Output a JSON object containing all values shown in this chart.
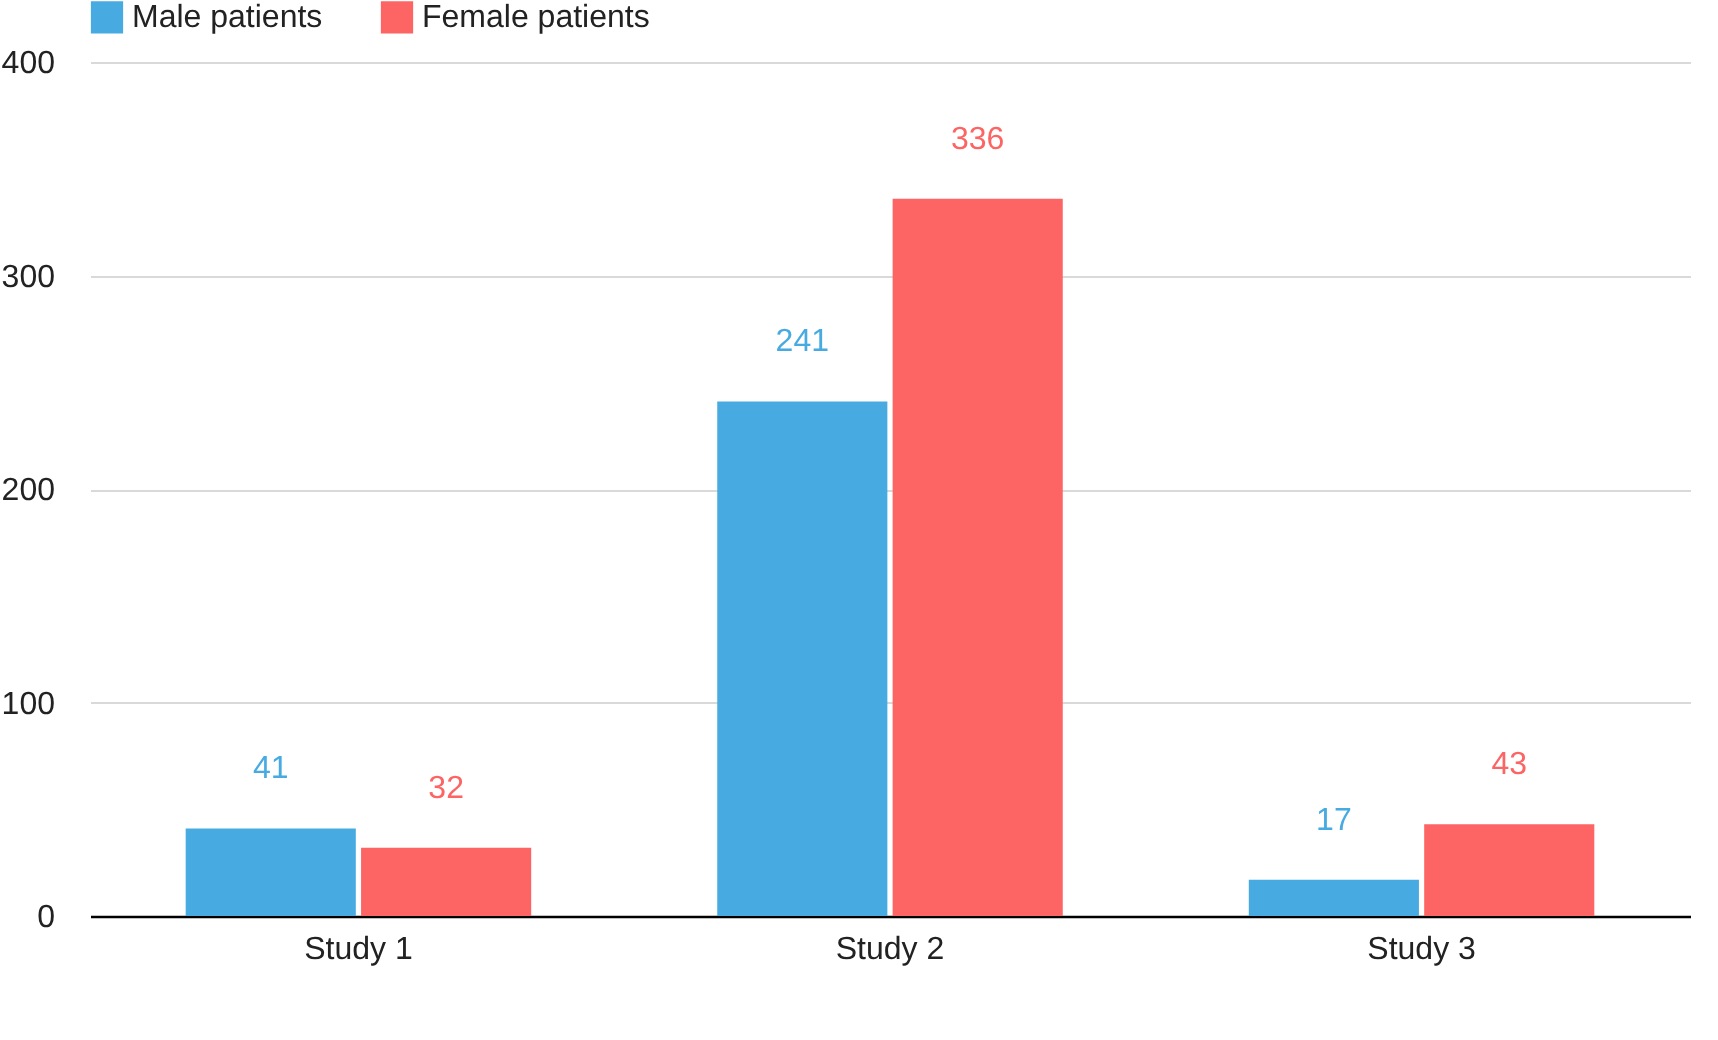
{
  "chart_data": {
    "type": "bar",
    "categories": [
      "Study 1",
      "Study 2",
      "Study 3"
    ],
    "series": [
      {
        "name": "Male patients",
        "color": "#47abe1",
        "values": [
          41,
          241,
          17
        ]
      },
      {
        "name": "Female patients",
        "color": "#fd6464",
        "values": [
          32,
          336,
          43
        ]
      }
    ],
    "ylim": [
      0,
      400
    ],
    "yticks": [
      0,
      100,
      200,
      300,
      400
    ],
    "grid": "y",
    "legend": "top",
    "data_labels": true
  }
}
